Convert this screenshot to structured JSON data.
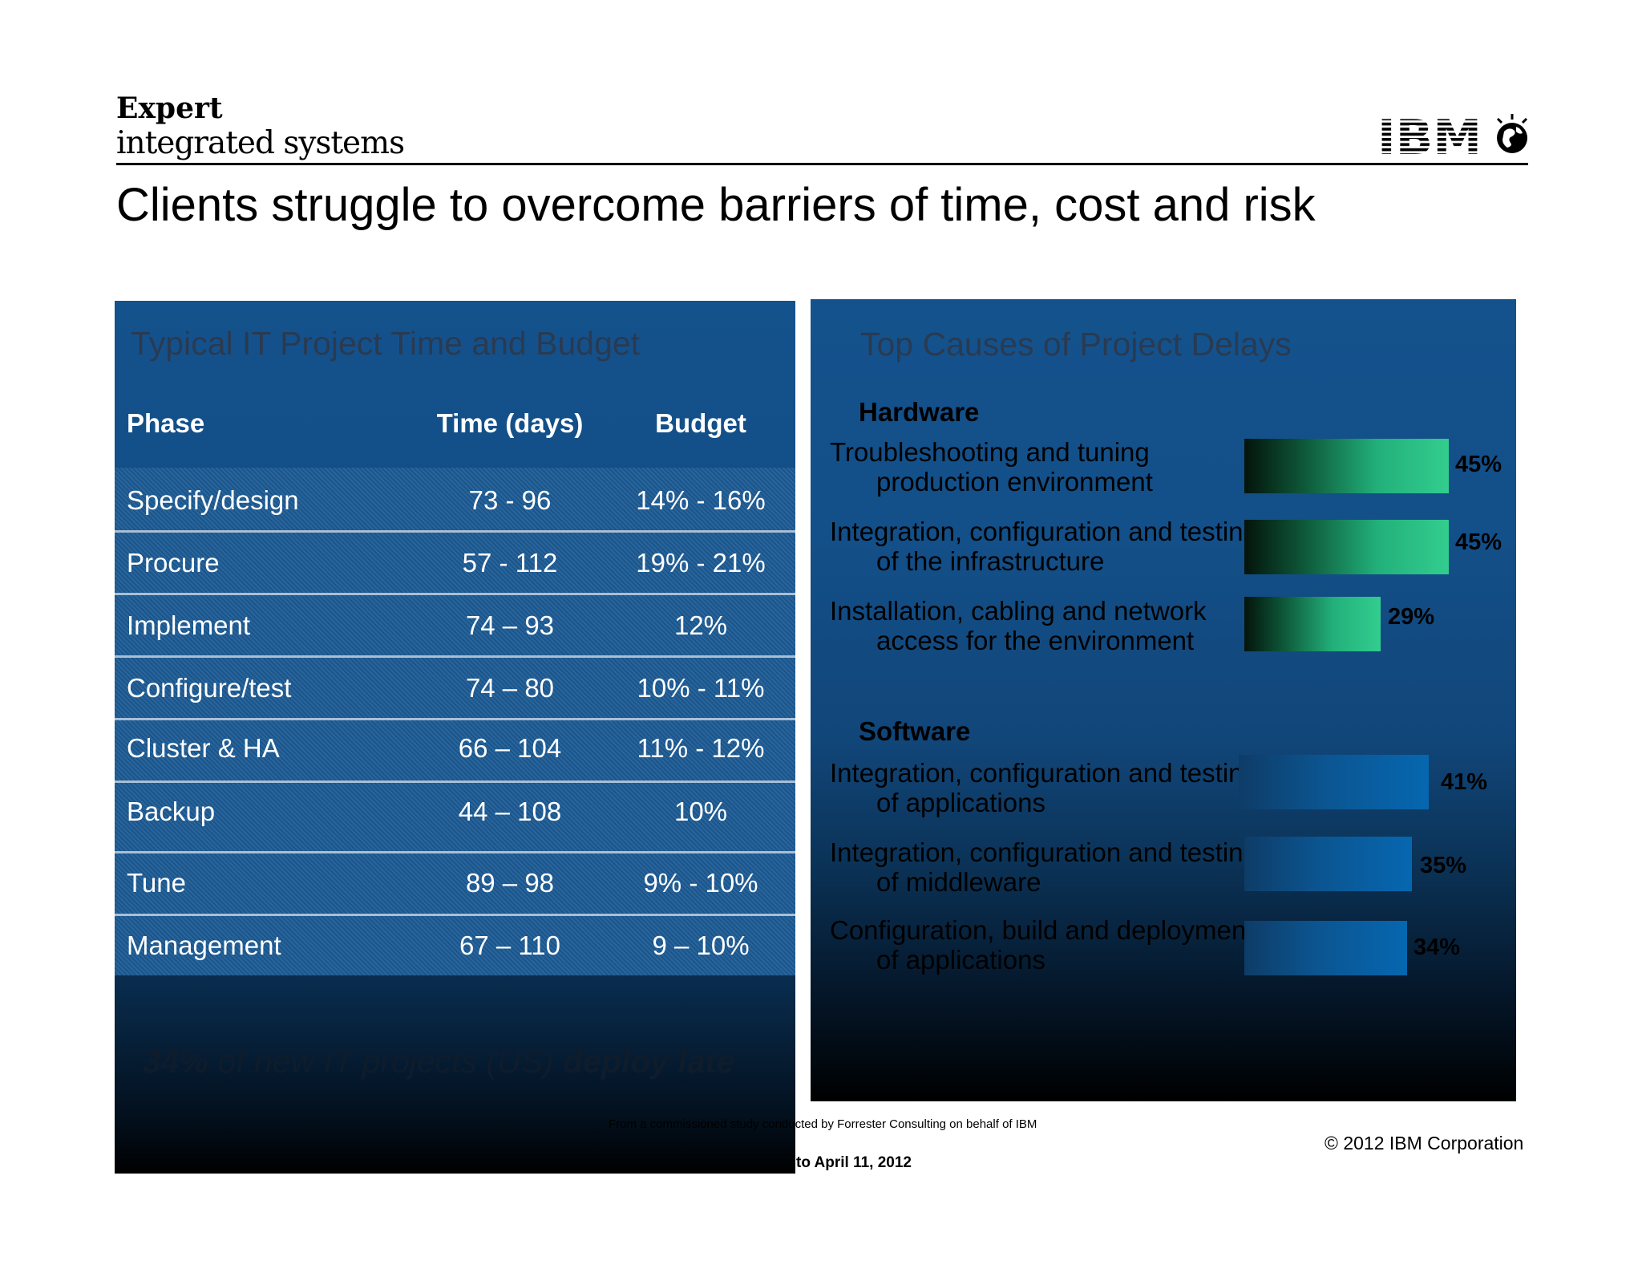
{
  "header": {
    "brand_line1": "Expert",
    "brand_line2": "integrated systems",
    "logo_text": "IBM",
    "title": "Clients struggle to overcome barriers of time, cost and risk"
  },
  "left_panel": {
    "title": "Typical IT Project Time and Budget",
    "columns": [
      "Phase",
      "Time (days)",
      "Budget"
    ],
    "rows": [
      [
        "Specify/design",
        "73 - 96",
        "14% - 16%"
      ],
      [
        "Procure",
        "57 - 112",
        "19% - 21%"
      ],
      [
        "Implement",
        "74 – 93",
        "12%"
      ],
      [
        "Configure/test",
        "74 – 80",
        "10% - 11%"
      ],
      [
        "Cluster & HA",
        "66 – 104",
        "11% - 12%"
      ],
      [
        "Backup",
        "44 – 108",
        "10%"
      ],
      [
        "Tune",
        "89 – 98",
        "9% - 10%"
      ],
      [
        "Management",
        "67 – 110",
        "9 – 10%"
      ]
    ],
    "note_stat": "34%",
    "note_middle": " of new IT projects (US) ",
    "note_end": "deploy late"
  },
  "right_panel": {
    "title": "Top Causes of Project Delays",
    "hardware_label": "Hardware",
    "software_label": "Software",
    "hardware": [
      {
        "line1": "Troubleshooting and tuning",
        "line2": "production environment",
        "value": 45,
        "label": "45%"
      },
      {
        "line1": "Integration, configuration and testing",
        "line2": "of the infrastructure",
        "value": 45,
        "label": "45%"
      },
      {
        "line1": "Installation, cabling and network",
        "line2": "access for the environment",
        "value": 29,
        "label": "29%"
      }
    ],
    "software": [
      {
        "line1": "Integration, configuration and testing",
        "line2": "of applications",
        "value": 41,
        "label": "41%"
      },
      {
        "line1": "Integration, configuration and testing",
        "line2": "of middleware",
        "value": 35,
        "label": "35%"
      },
      {
        "line1": "Configuration, build and deployment",
        "line2": "of applications",
        "value": 34,
        "label": "34%"
      }
    ],
    "colors": {
      "hardware_bar": "#33cd8f",
      "software_bar": "#0667b0"
    }
  },
  "footer": {
    "source": "From a commissioned study conducted by Forrester Consulting on behalf of IBM",
    "date": "to April 11, 2012",
    "copyright": "© 2012 IBM Corporation"
  }
}
